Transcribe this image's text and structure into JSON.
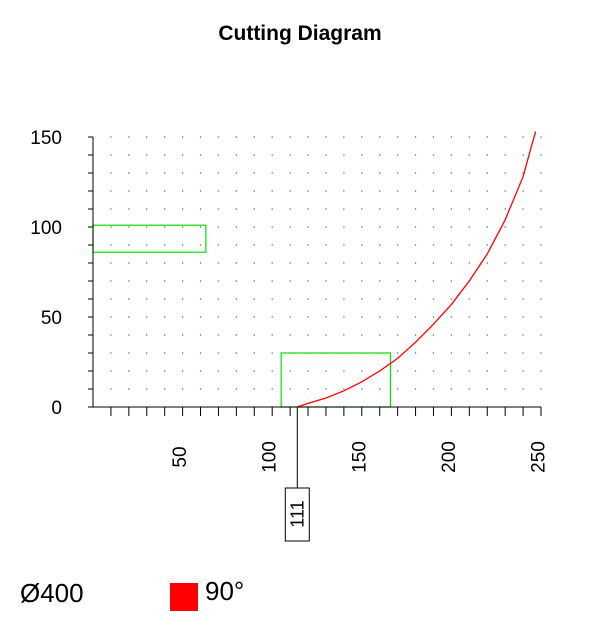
{
  "chart_data": {
    "type": "line",
    "title": "Cutting Diagram",
    "xlabel": "",
    "ylabel": "",
    "xlim": [
      0,
      250
    ],
    "ylim": [
      0,
      150
    ],
    "x_ticks": [
      50,
      100,
      150,
      200,
      250
    ],
    "y_ticks": [
      0,
      50,
      100,
      150
    ],
    "x_minor_step": 10,
    "y_minor_step": 10,
    "grid": "dotted",
    "cut_curve": {
      "color": "#ff0000",
      "points": [
        [
          114,
          0
        ],
        [
          120,
          2
        ],
        [
          130,
          5
        ],
        [
          140,
          9
        ],
        [
          150,
          14
        ],
        [
          160,
          20
        ],
        [
          170,
          27
        ],
        [
          180,
          36
        ],
        [
          190,
          46
        ],
        [
          200,
          57
        ],
        [
          210,
          70
        ],
        [
          220,
          85
        ],
        [
          230,
          104
        ],
        [
          240,
          128
        ],
        [
          245,
          146
        ],
        [
          247,
          153
        ]
      ]
    },
    "rectangles": [
      {
        "x": [
          0,
          63
        ],
        "y": [
          86,
          101
        ],
        "color": "#00e000"
      },
      {
        "x": [
          105,
          166
        ],
        "y": [
          0,
          30
        ],
        "color": "#00e000"
      }
    ],
    "marker": {
      "x": 114,
      "label": "111"
    }
  },
  "footer": {
    "diameter": "Ø400",
    "angle": "90°",
    "swatch_color": "#ff0000"
  }
}
